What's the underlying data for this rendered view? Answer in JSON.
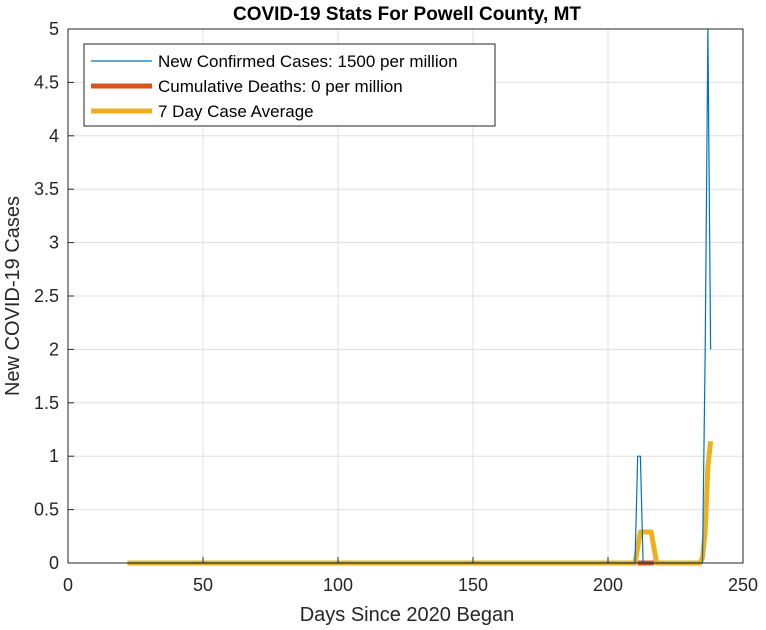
{
  "chart_data": {
    "type": "line",
    "title": "COVID-19 Stats For Powell County, MT",
    "xlabel": "Days Since 2020 Began",
    "ylabel": "New COVID-19 Cases",
    "xlim": [
      0,
      250
    ],
    "ylim": [
      0,
      5
    ],
    "xticks": [
      0,
      50,
      100,
      150,
      200,
      250
    ],
    "yticks": [
      0,
      0.5,
      1,
      1.5,
      2,
      2.5,
      3,
      3.5,
      4,
      4.5,
      5
    ],
    "xtick_labels": [
      "0",
      "50",
      "100",
      "150",
      "200",
      "250"
    ],
    "ytick_labels": [
      "0",
      "0.5",
      "1",
      "1.5",
      "2",
      "2.5",
      "3",
      "3.5",
      "4",
      "4.5",
      "5"
    ],
    "grid": true,
    "legend_position": "top-left",
    "series": [
      {
        "name": "New Confirmed Cases: 1500 per million",
        "color": "#0072BD",
        "line_width": "thin",
        "points": [
          [
            22,
            0
          ],
          [
            210,
            0
          ],
          [
            211,
            1
          ],
          [
            212,
            1
          ],
          [
            213,
            0
          ],
          [
            235,
            0
          ],
          [
            236,
            2
          ],
          [
            237,
            5
          ],
          [
            238,
            2
          ]
        ]
      },
      {
        "name": "Cumulative Deaths: 0 per million",
        "color": "#D95319",
        "line_width": "thick",
        "points": [
          [
            211,
            0
          ],
          [
            217,
            0
          ]
        ]
      },
      {
        "name": "7 Day Case Average",
        "color": "#EDB120",
        "line_width": "thick",
        "points": [
          [
            22,
            0
          ],
          [
            210,
            0
          ],
          [
            212,
            0.29
          ],
          [
            216,
            0.29
          ],
          [
            218,
            0
          ],
          [
            234,
            0
          ],
          [
            235,
            0.05
          ],
          [
            236,
            0.3
          ],
          [
            237,
            0.9
          ],
          [
            238,
            1.14
          ]
        ]
      }
    ]
  }
}
